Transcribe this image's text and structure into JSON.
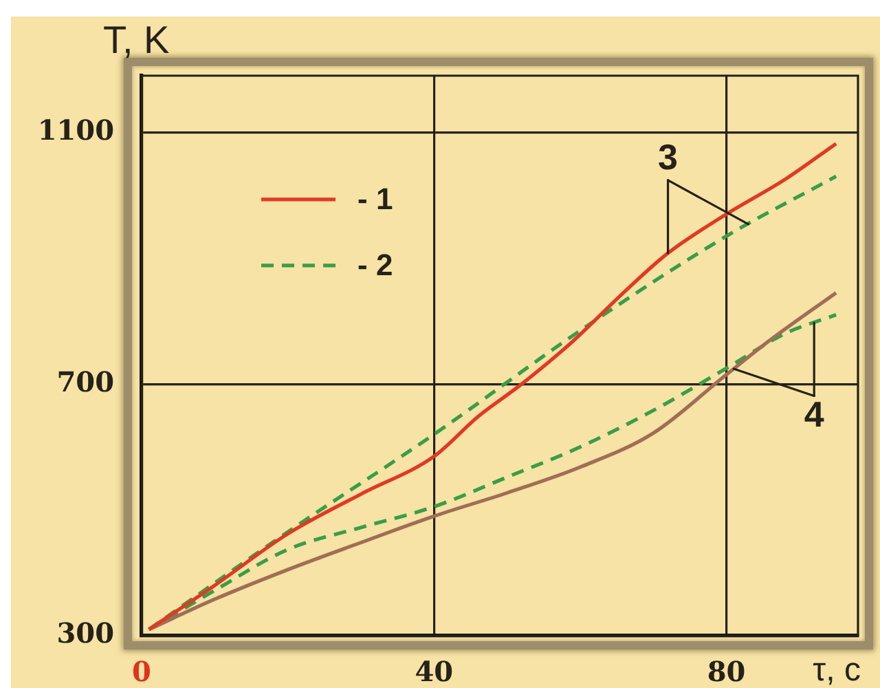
{
  "chart_data": {
    "type": "line",
    "xlabel": "τ, c",
    "ylabel": "T, K",
    "annotations": [
      {
        "text": "3",
        "x": 72,
        "y": 908
      },
      {
        "text": "4",
        "x": 92,
        "y": 797
      }
    ],
    "series": [
      {
        "name": "- 1",
        "color": "#df3a26",
        "line_style": "solid",
        "x": [
          1,
          10,
          20,
          30,
          40,
          46,
          52,
          59,
          66,
          72,
          80,
          88,
          95
        ],
        "values": [
          310,
          380,
          462,
          525,
          585,
          648,
          700,
          768,
          846,
          908,
          970,
          1025,
          1082
        ]
      },
      {
        "name": "- 2",
        "color": "#3a9e45",
        "line_style": "dashed",
        "x": [
          1,
          20,
          40,
          60,
          80,
          95
        ],
        "values": [
          310,
          465,
          620,
          785,
          935,
          1030
        ]
      },
      {
        "color": "#a06e55",
        "line_style": "solid",
        "x": [
          1,
          10,
          20,
          30,
          40,
          50,
          60,
          70,
          80,
          86,
          95
        ],
        "values": [
          310,
          358,
          405,
          448,
          490,
          527,
          568,
          622,
          715,
          770,
          845
        ]
      },
      {
        "color": "#3a9e45",
        "line_style": "dashed",
        "x": [
          1,
          10,
          20,
          30,
          40,
          50,
          60,
          70,
          80,
          88,
          95
        ],
        "values": [
          310,
          372,
          437,
          472,
          505,
          552,
          600,
          658,
          725,
          780,
          810
        ]
      }
    ],
    "xlim": [
      0,
      98
    ],
    "ylim": [
      300,
      1190
    ],
    "xticks": [
      0,
      40,
      80
    ],
    "yticks": [
      300,
      700,
      1100
    ],
    "grid": true,
    "legend": "top left"
  }
}
